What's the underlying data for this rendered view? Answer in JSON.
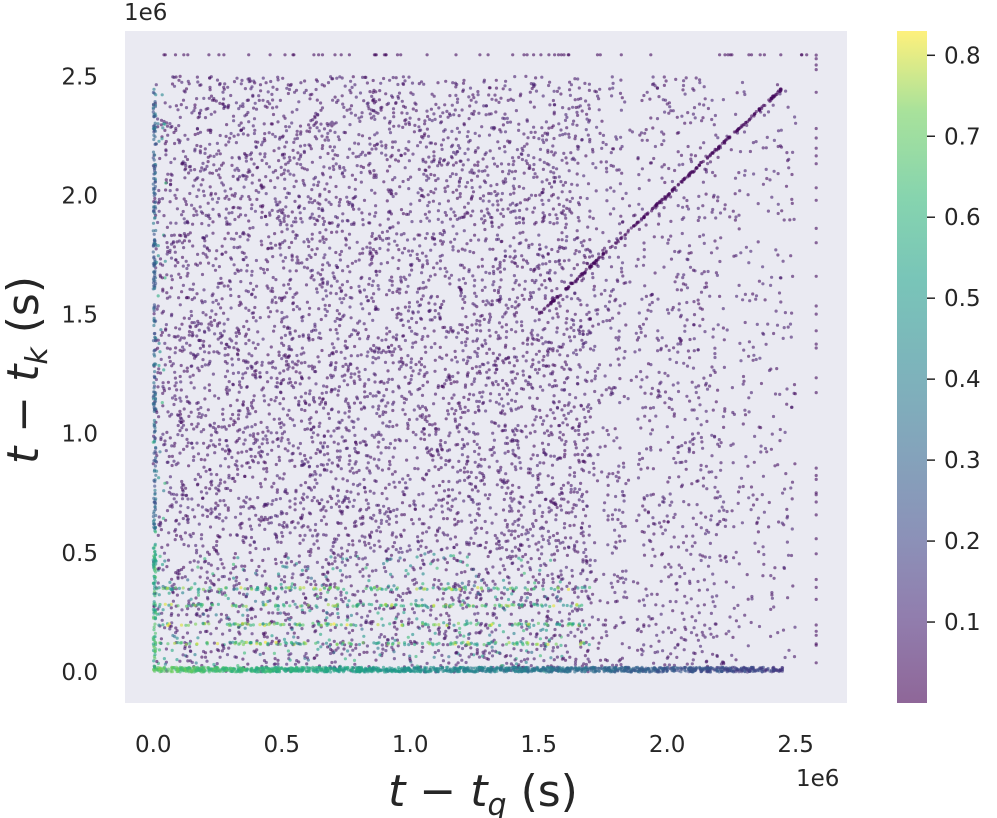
{
  "chart_data": {
    "type": "scatter",
    "xlabel": {
      "t": "t",
      "op": " − ",
      "sub_base": "t",
      "sub": "q",
      "unit": " (s)"
    },
    "ylabel": {
      "t": "t",
      "op": " − ",
      "sub_base": "t",
      "sub": "k",
      "unit": " (s)"
    },
    "x_offset_text": "1e6",
    "y_offset_text": "1e6",
    "xlim": [
      -0.11,
      2.7
    ],
    "ylim": [
      -0.13,
      2.69
    ],
    "x_ticks": [
      0.0,
      0.5,
      1.0,
      1.5,
      2.0,
      2.5
    ],
    "x_tick_labels": [
      "0.0",
      "0.5",
      "1.0",
      "1.5",
      "2.0",
      "2.5"
    ],
    "y_ticks": [
      0.0,
      0.5,
      1.0,
      1.5,
      2.0,
      2.5
    ],
    "y_tick_labels": [
      "0.0",
      "0.5",
      "1.0",
      "1.5",
      "2.0",
      "2.5"
    ],
    "grid": false,
    "plot_background": "#eaeaf2",
    "colormap": "viridis",
    "marker_alpha": 0.6,
    "colorbar": {
      "range": [
        0.0,
        0.83
      ],
      "ticks": [
        0.1,
        0.2,
        0.3,
        0.4,
        0.5,
        0.6,
        0.7,
        0.8
      ],
      "tick_labels": [
        "0.1",
        "0.2",
        "0.3",
        "0.4",
        "0.5",
        "0.6",
        "0.7",
        "0.8"
      ]
    },
    "description": "Dense scatter of points in the region 0 ≤ x,y ≤ 2.5e6; mostly low values (dark purple), higher values (green/yellow) concentrated near the x-axis (y < 0.4e6) and at x ≈ 0; sparse diagonal y = x; gaps near x ≈ 1.86e6 and y ≈ 1.86e6.",
    "series": [
      {
        "values_sample": [
          [
            0.0,
            0.0,
            0.75
          ],
          [
            0.05,
            0.03,
            0.8
          ],
          [
            0.1,
            0.0,
            0.7
          ],
          [
            0.3,
            0.01,
            0.6
          ],
          [
            0.5,
            0.0,
            0.55
          ],
          [
            1.0,
            0.01,
            0.45
          ],
          [
            1.5,
            0.0,
            0.35
          ],
          [
            2.0,
            0.0,
            0.25
          ],
          [
            2.4,
            0.0,
            0.15
          ],
          [
            0.43,
            0.12,
            0.83
          ],
          [
            0.92,
            0.12,
            0.8
          ],
          [
            1.15,
            0.12,
            0.75
          ],
          [
            0.0,
            0.5,
            0.45
          ],
          [
            0.0,
            1.0,
            0.3
          ],
          [
            0.0,
            1.5,
            0.2
          ],
          [
            0.0,
            2.0,
            0.4
          ],
          [
            1.0,
            1.0,
            0.0
          ],
          [
            1.5,
            1.5,
            0.0
          ],
          [
            2.0,
            2.0,
            0.0
          ],
          [
            2.4,
            2.43,
            0.0
          ],
          [
            2.58,
            2.59,
            0.0
          ],
          [
            2.58,
            0.03,
            0.05
          ]
        ]
      }
    ]
  }
}
